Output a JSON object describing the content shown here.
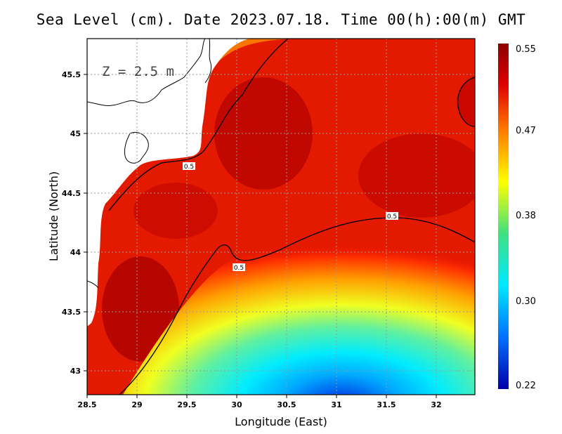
{
  "title": "Sea Level (cm). Date 2023.07.18. Time 00(h):00(m) GMT",
  "depth_label": "Z = 2.5 m",
  "x_axis": {
    "label": "Longitude (East)",
    "range": [
      28.5,
      32.4
    ],
    "ticks": [
      "28.5",
      "29",
      "29.5",
      "30",
      "30.5",
      "31",
      "31.5",
      "32"
    ]
  },
  "y_axis": {
    "label": "Latitude (North)",
    "range": [
      42.8,
      45.8
    ],
    "ticks": [
      "43",
      "43.5",
      "44",
      "44.5",
      "45",
      "45.5"
    ]
  },
  "colorbar": {
    "ticks": [
      "0.55",
      "0.47",
      "0.38",
      "0.30",
      "0.22"
    ],
    "range": [
      0.22,
      0.55
    ]
  },
  "contour_labels": [
    "0.5",
    "0.5",
    "0.5"
  ],
  "colors": {
    "max": "#8b0000",
    "high": "#e00000",
    "mid": "#ffff00",
    "low_mid": "#00e0ff",
    "min": "#0000b0",
    "land": "#ffffff"
  }
}
